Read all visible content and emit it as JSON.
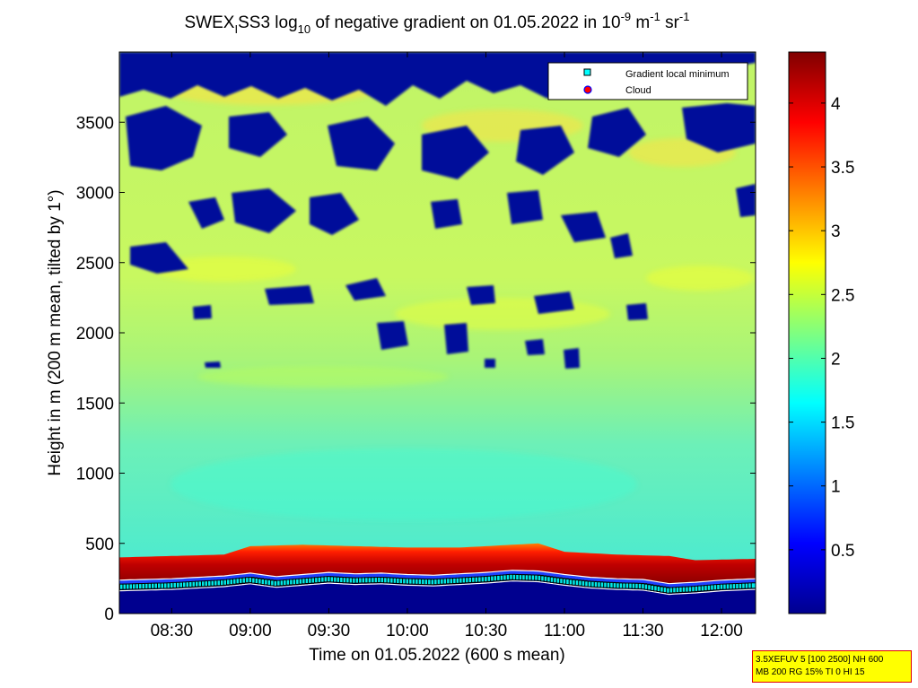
{
  "chart_data": {
    "type": "heatmap",
    "title": {
      "prefix": "SWEX",
      "sub_i": "I",
      "part2": "SS3 log",
      "sub_10": "10",
      "part3": " of negative gradient on 01.05.2022 in 10",
      "sup1": "-9",
      "part4": " m",
      "sup2": "-1",
      "part5": " sr",
      "sup3": "-1"
    },
    "xlabel": "Time on 01.05.2022 (600 s mean)",
    "ylabel": "Height in m (200 m mean, tilted by 1°)",
    "x_ticks": [
      "08:30",
      "09:00",
      "09:30",
      "10:00",
      "10:30",
      "11:00",
      "11:30",
      "12:00"
    ],
    "x_tick_minutes": [
      510,
      540,
      570,
      600,
      630,
      660,
      690,
      720
    ],
    "xlim_minutes": [
      490,
      733
    ],
    "y_ticks": [
      "0",
      "500",
      "1000",
      "1500",
      "2000",
      "2500",
      "3000",
      "3500"
    ],
    "y_tick_values": [
      0,
      500,
      1000,
      1500,
      2000,
      2500,
      3000,
      3500
    ],
    "ylim": [
      0,
      4000
    ],
    "colorbar": {
      "ticks": [
        "0.5",
        "1",
        "1.5",
        "2",
        "2.5",
        "3",
        "3.5",
        "4"
      ],
      "tick_values": [
        0.5,
        1,
        1.5,
        2,
        2.5,
        3,
        3.5,
        4
      ],
      "range": [
        0,
        4.4
      ],
      "colormap": "jet"
    },
    "legend": {
      "placement": "top-right",
      "entries": [
        {
          "label": "Gradient local minimum",
          "marker": "square",
          "color": "#00ffff"
        },
        {
          "label": "Cloud",
          "marker": "circle",
          "color": "#ff0000"
        }
      ]
    },
    "gradient_minimum_series": {
      "x_minutes": [
        490,
        500,
        510,
        520,
        530,
        540,
        550,
        560,
        570,
        580,
        590,
        600,
        610,
        620,
        630,
        640,
        650,
        660,
        670,
        680,
        690,
        700,
        710,
        720,
        733
      ],
      "y": [
        190,
        195,
        200,
        210,
        220,
        240,
        215,
        230,
        245,
        235,
        240,
        230,
        225,
        235,
        245,
        260,
        255,
        230,
        210,
        200,
        195,
        165,
        175,
        190,
        200
      ]
    },
    "boundary_layer_top": {
      "x_minutes": [
        490,
        510,
        530,
        540,
        560,
        580,
        600,
        620,
        640,
        650,
        660,
        680,
        700,
        710,
        733
      ],
      "y": [
        400,
        410,
        420,
        480,
        490,
        480,
        470,
        470,
        490,
        500,
        440,
        420,
        410,
        380,
        390
      ]
    }
  },
  "info_box": {
    "line1": "3.5XEFUV 5 [100 2500] NH 600",
    "line2": "MB 200 RG 15% TI 0 HI 15"
  }
}
